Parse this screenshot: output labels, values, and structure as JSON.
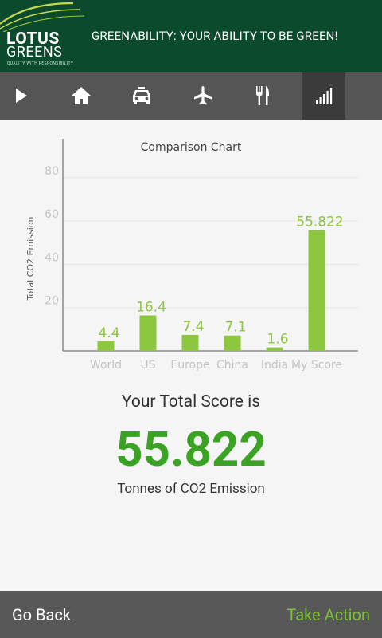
{
  "header": {
    "logo_line1": "LOTUS",
    "logo_line2": "GREENS",
    "logo_tagline": "QUALITY WITH RESPONSIBILITY",
    "title": "GREENABILITY: YOUR ABILITY TO BE GREEN!"
  },
  "nav": {
    "items": [
      {
        "icon": "play-icon",
        "active": false
      },
      {
        "icon": "home-icon",
        "active": false
      },
      {
        "icon": "taxi-icon",
        "active": false
      },
      {
        "icon": "airplane-icon",
        "active": false
      },
      {
        "icon": "fork-knife-icon",
        "active": false
      },
      {
        "icon": "signal-bars-icon",
        "active": true
      }
    ]
  },
  "chart_data": {
    "type": "bar",
    "title": "Comparison Chart",
    "ylabel": "Total CO2 Emission",
    "xlabel": "",
    "categories": [
      "World",
      "US",
      "Europe",
      "China",
      "India",
      "My Score"
    ],
    "values": [
      4.4,
      16.4,
      7.4,
      7.1,
      1.6,
      55.822
    ],
    "value_labels": [
      "4.4",
      "16.4",
      "7.4",
      "7.1",
      "1.6",
      "55.822"
    ],
    "ylim": [
      0,
      98
    ],
    "yticks": [
      20,
      40,
      60,
      80
    ],
    "ytick_labels": [
      "20",
      "40",
      "60",
      "80"
    ],
    "grid": true,
    "bar_color": "#8dc63f"
  },
  "score": {
    "label": "Your Total Score is",
    "value": "55.822",
    "unit": "Tonnes of CO2 Emission"
  },
  "footer": {
    "back_label": "Go Back",
    "action_label": "Take Action"
  },
  "colors": {
    "header_bg": "#0b4a2c",
    "nav_bg": "#555555",
    "nav_active_bg": "#3b3b3b",
    "accent_green": "#3aa324",
    "action_green": "#7cc13a",
    "footer_bg": "#585858"
  }
}
